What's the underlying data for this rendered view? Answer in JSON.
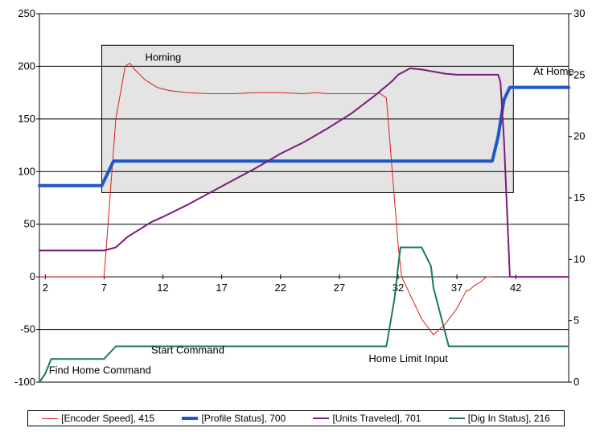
{
  "chart_data": {
    "type": "line",
    "y_left": {
      "range": [
        -100,
        250
      ],
      "ticks": [
        "250",
        "200",
        "150",
        "100",
        "50",
        "0",
        "-50",
        "-100"
      ]
    },
    "y_right": {
      "range": [
        0,
        30
      ],
      "ticks": [
        "30",
        "25",
        "20",
        "15",
        "10",
        "5",
        "0"
      ]
    },
    "x": {
      "range": [
        1.5,
        46.5
      ],
      "ticks": [
        "2",
        "7",
        "12",
        "17",
        "22",
        "27",
        "32",
        "37",
        "42"
      ]
    },
    "shaded_region": {
      "x": [
        6.8,
        41.8
      ],
      "y": [
        80,
        220
      ],
      "label": "Homing",
      "color": "#e4e4e4"
    },
    "annotations": [
      {
        "text": "At Home",
        "x": 43.5,
        "y": 192
      },
      {
        "text": "Start Command",
        "x": 11,
        "y": -73
      },
      {
        "text": "Find Home Command",
        "x": 2.3,
        "y": -92
      },
      {
        "text": "Home Limit Input",
        "x": 29.5,
        "y": -81
      }
    ],
    "series": [
      {
        "name": "[Encoder Speed], 415",
        "axis": "left",
        "color": "#dd1c1c",
        "width": 1,
        "points": [
          [
            1.5,
            0
          ],
          [
            7,
            0
          ],
          [
            8,
            150
          ],
          [
            8.8,
            200
          ],
          [
            9.2,
            203
          ],
          [
            9.6,
            197
          ],
          [
            10.5,
            187
          ],
          [
            11.5,
            180
          ],
          [
            12.5,
            177
          ],
          [
            14,
            175
          ],
          [
            16,
            174
          ],
          [
            18,
            174
          ],
          [
            20,
            175
          ],
          [
            22,
            175
          ],
          [
            24,
            174
          ],
          [
            25,
            175
          ],
          [
            26,
            174
          ],
          [
            28,
            174
          ],
          [
            30.5,
            174
          ],
          [
            31,
            170
          ],
          [
            31.5,
            100
          ],
          [
            32,
            30
          ],
          [
            32.3,
            0
          ],
          [
            34,
            -40
          ],
          [
            35,
            -55
          ],
          [
            36,
            -45
          ],
          [
            37,
            -30
          ],
          [
            37.8,
            -13
          ],
          [
            38,
            -13
          ],
          [
            38.5,
            -8
          ],
          [
            39,
            -5
          ],
          [
            39.5,
            0
          ],
          [
            40,
            0
          ]
        ]
      },
      {
        "name": "[Profile Status], 700",
        "axis": "right",
        "color": "#1f57c4",
        "width": 4,
        "points": [
          [
            1.5,
            16
          ],
          [
            6.8,
            16
          ],
          [
            7.8,
            18
          ],
          [
            40,
            18
          ],
          [
            40.5,
            20
          ],
          [
            41,
            23
          ],
          [
            41.5,
            24
          ],
          [
            46.5,
            24
          ]
        ]
      },
      {
        "name": "[Units Traveled], 701",
        "axis": "left",
        "color": "#7a1c7a",
        "width": 2,
        "points": [
          [
            1.5,
            25
          ],
          [
            7,
            25
          ],
          [
            8,
            28
          ],
          [
            9,
            38
          ],
          [
            10,
            45
          ],
          [
            11,
            52
          ],
          [
            12,
            57
          ],
          [
            14,
            68
          ],
          [
            16,
            80
          ],
          [
            18,
            92
          ],
          [
            20,
            104
          ],
          [
            22,
            117
          ],
          [
            24,
            128
          ],
          [
            26,
            141
          ],
          [
            28,
            155
          ],
          [
            30,
            172
          ],
          [
            31.5,
            186
          ],
          [
            32,
            192
          ],
          [
            33,
            198
          ],
          [
            34,
            197
          ],
          [
            35,
            195
          ],
          [
            36,
            193
          ],
          [
            37,
            192
          ],
          [
            38,
            192
          ],
          [
            39,
            192
          ],
          [
            40.5,
            192
          ],
          [
            40.7,
            185
          ],
          [
            41,
            130
          ],
          [
            41.5,
            0
          ],
          [
            46.5,
            0
          ]
        ]
      },
      {
        "name": "[Dig In Status], 216",
        "axis": "left",
        "color": "#1e7a52",
        "width": 2,
        "points": [
          [
            1.5,
            -100
          ],
          [
            2,
            -92
          ],
          [
            2.5,
            -78
          ],
          [
            7,
            -78
          ],
          [
            8,
            -66
          ],
          [
            31,
            -66
          ],
          [
            31.7,
            -20
          ],
          [
            32,
            10
          ],
          [
            32.2,
            28
          ],
          [
            34,
            28
          ],
          [
            34.8,
            10
          ],
          [
            35,
            -10
          ],
          [
            36.3,
            -66
          ],
          [
            46.5,
            -66
          ]
        ]
      }
    ],
    "legend": {
      "placement": "bottom"
    },
    "grid": {
      "horizontal": true,
      "vertical": false
    }
  }
}
